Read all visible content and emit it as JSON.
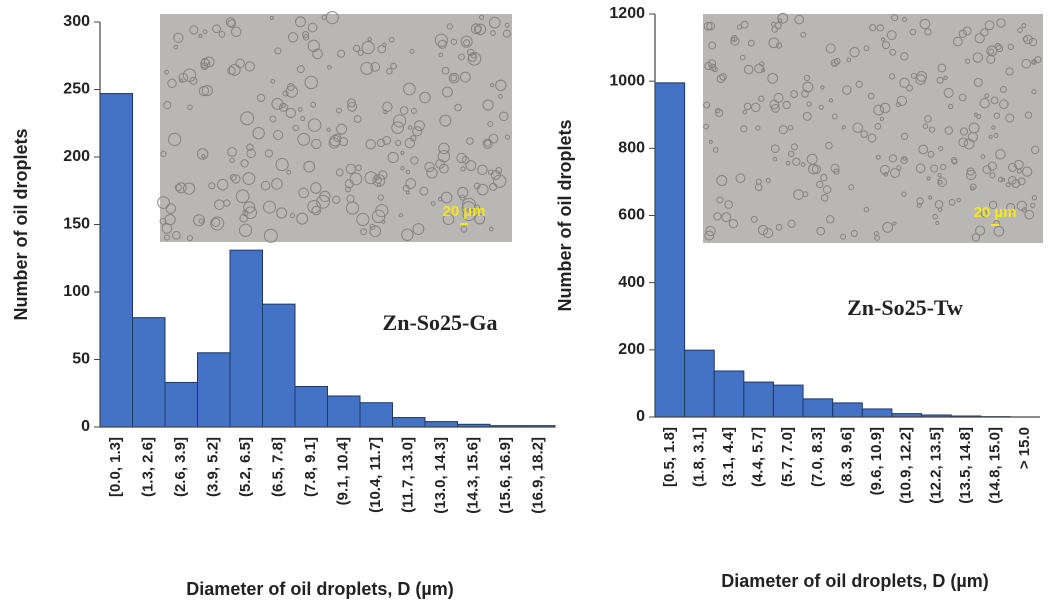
{
  "chart_data": [
    {
      "type": "bar",
      "y_label": "Number of oil droplets",
      "x_label": "Diameter of oil droplets, D (µm)",
      "annotation": "Zn-So25-Ga",
      "inset_scale_label": "20 µm",
      "categories": [
        "[0.0, 1.3]",
        "(1.3, 2.6]",
        "(2.6, 3.9]",
        "(3.9, 5.2]",
        "(5.2, 6.5]",
        "(6.5, 7.8]",
        "(7.8, 9.1]",
        "(9.1, 10.4]",
        "(10.4, 11.7]",
        "(11.7, 13.0]",
        "(13.0, 14.3]",
        "(14.3, 15.6]",
        "(15.6, 16.9]",
        "(16.9, 18.2]"
      ],
      "values": [
        247,
        81,
        33,
        55,
        131,
        91,
        30,
        23,
        18,
        7,
        4,
        2,
        1,
        1
      ],
      "color": "#4472c4",
      "ylim": [
        0,
        300
      ],
      "yticks": [
        0,
        50,
        100,
        150,
        200,
        250,
        300
      ]
    },
    {
      "type": "bar",
      "y_label": "Number of oil droplets",
      "x_label": "Diameter of oil droplets, D (µm)",
      "annotation": "Zn-So25-Tw",
      "inset_scale_label": "20 µm",
      "categories": [
        "[0.5, 1.8]",
        "(1.8, 3.1]",
        "(3.1, 4.4]",
        "(4.4, 5.7]",
        "(5.7, 7.0]",
        "(7.0, 8.3]",
        "(8.3, 9.6]",
        "(9.6, 10.9]",
        "(10.9, 12.2]",
        "(12.2, 13.5]",
        "(13.5, 14.8]",
        "(14.8, 15.0]",
        "> 15.0"
      ],
      "values": [
        995,
        199,
        137,
        104,
        95,
        54,
        42,
        24,
        10,
        6,
        3,
        1,
        0
      ],
      "color": "#4472c4",
      "ylim": [
        0,
        1200
      ],
      "yticks": [
        0,
        200,
        400,
        600,
        800,
        1000,
        1200
      ]
    }
  ]
}
